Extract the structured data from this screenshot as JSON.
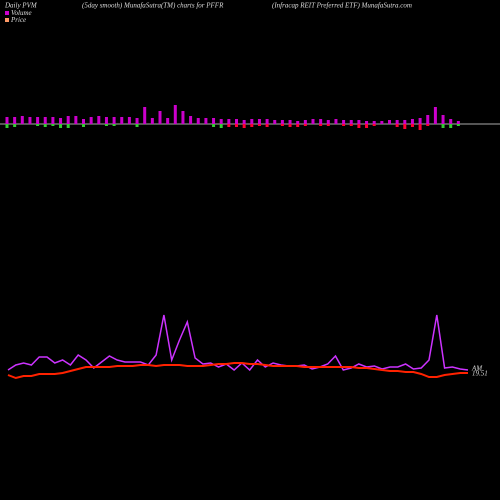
{
  "chart_data": {
    "type": "pvm",
    "title": "Daily PVM",
    "subtitle": "(5day smooth) MunafaSutra(TM) charts for PFFR",
    "site": "(Infracap REIT Preferred ETF) MunafaSutra.com",
    "price_label": "19.51",
    "volume_label": "AM",
    "bars": {
      "name": "Volume",
      "color": "#cc00cc",
      "values": [
        7,
        7,
        8,
        7,
        7,
        7,
        7,
        6,
        8,
        8,
        5,
        7,
        8,
        7,
        7,
        7,
        7,
        6,
        17,
        6,
        13,
        6,
        19,
        13,
        8,
        6,
        6,
        6,
        5,
        5,
        5,
        4,
        5,
        5,
        5,
        4,
        4,
        4,
        3,
        4,
        5,
        5,
        4,
        5,
        4,
        4,
        4,
        3,
        3,
        3,
        4,
        4,
        4,
        5,
        6,
        9,
        17,
        9,
        5,
        3
      ],
      "down_values": [
        -4,
        -3,
        0,
        0,
        -2,
        -3,
        -2,
        -4,
        -4,
        0,
        -3,
        0,
        0,
        -2,
        -2,
        0,
        0,
        -3,
        0,
        0,
        0,
        0,
        0,
        0,
        0,
        0,
        0,
        -3,
        -4,
        -3,
        -3,
        -4,
        -3,
        -2,
        -3,
        0,
        -2,
        -3,
        -3,
        -2,
        0,
        -2,
        -2,
        0,
        -2,
        -2,
        -4,
        -4,
        -2,
        0,
        0,
        -3,
        -5,
        -3,
        -6,
        -2,
        0,
        -4,
        -4,
        -2
      ],
      "down_colors": [
        "#33cc33",
        "#33cc33",
        "#33cc33",
        "#33cc33",
        "#33cc33",
        "#33cc33",
        "#33cc33",
        "#33cc33",
        "#33cc33",
        "#33cc33",
        "#33cc33",
        "#33cc33",
        "#33cc33",
        "#33cc33",
        "#33cc33",
        "#33cc33",
        "#33cc33",
        "#33cc33",
        "#33cc33",
        "#33cc33",
        "#33cc33",
        "#33cc33",
        "#33cc33",
        "#33cc33",
        "#33cc33",
        "#33cc33",
        "#33cc33",
        "#33cc33",
        "#33cc33",
        "#ff0033",
        "#ff0033",
        "#ff0033",
        "#ff0033",
        "#ff0033",
        "#ff0033",
        "#ff0033",
        "#ff0033",
        "#ff0033",
        "#ff0033",
        "#ff0033",
        "#ff0033",
        "#ff0033",
        "#ff0033",
        "#ff0033",
        "#ff0033",
        "#ff0033",
        "#ff0033",
        "#ff0033",
        "#ff0033",
        "#ff0033",
        "#ff0033",
        "#ff0033",
        "#ff0033",
        "#ff0033",
        "#ff0033",
        "#ff0033",
        "#33cc33",
        "#33cc33",
        "#33cc33",
        "#33cc33"
      ]
    },
    "ylim": [
      0,
      100
    ],
    "series": [
      {
        "name": "Volume",
        "color": "#cc33ff",
        "values": [
          30,
          35,
          37,
          35,
          43,
          43,
          37,
          40,
          35,
          45,
          40,
          32,
          38,
          44,
          40,
          38,
          38,
          38,
          35,
          45,
          85,
          40,
          60,
          78,
          42,
          36,
          37,
          33,
          36,
          30,
          37,
          30,
          40,
          33,
          37,
          35,
          34,
          34,
          35,
          31,
          33,
          36,
          44,
          30,
          32,
          36,
          33,
          34,
          31,
          33,
          33,
          36,
          31,
          32,
          40,
          85,
          32,
          33,
          31,
          30
        ]
      },
      {
        "name": "Price",
        "color": "#ff2200",
        "values": [
          25,
          22,
          24,
          24,
          26,
          26,
          26,
          27,
          29,
          31,
          33,
          33,
          33,
          33,
          34,
          34,
          34,
          35,
          35,
          34,
          35,
          35,
          35,
          34,
          34,
          34,
          35,
          36,
          36,
          37,
          37,
          36,
          36,
          35,
          34,
          34,
          34,
          34,
          33,
          33,
          33,
          33,
          33,
          33,
          33,
          32,
          32,
          31,
          30,
          29,
          29,
          28,
          28,
          26,
          23,
          23,
          25,
          26,
          27,
          27
        ]
      }
    ]
  }
}
